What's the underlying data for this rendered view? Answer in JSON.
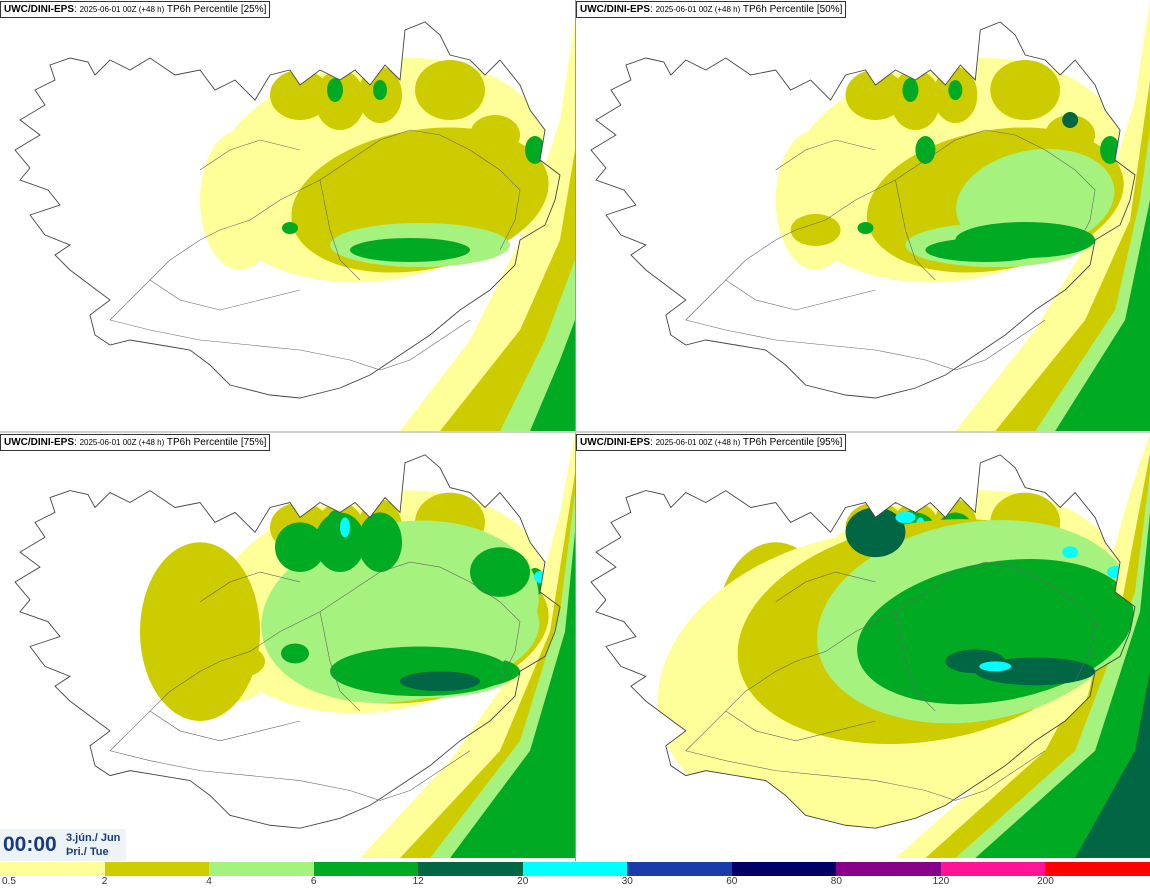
{
  "panels": [
    {
      "model": "UWC/DINI-EPS",
      "run": "2025-06-01 00Z (+48 h)",
      "product": "TP6h Percentile [25%]",
      "level": 0
    },
    {
      "model": "UWC/DINI-EPS",
      "run": "2025-06-01 00Z (+48 h)",
      "product": "TP6h Percentile [50%]",
      "level": 1
    },
    {
      "model": "UWC/DINI-EPS",
      "run": "2025-06-01 00Z (+48 h)",
      "product": "TP6h Percentile [75%]",
      "level": 2
    },
    {
      "model": "UWC/DINI-EPS",
      "run": "2025-06-01 00Z (+48 h)",
      "product": "TP6h Percentile [95%]",
      "level": 3
    }
  ],
  "time": {
    "clock": "00:00",
    "date_line": "3.jún./ Jun",
    "day_line": "Þri./ Tue"
  },
  "legend": {
    "ticks": [
      "0.5",
      "2",
      "4",
      "6",
      "12",
      "20",
      "30",
      "60",
      "80",
      "120",
      "200"
    ],
    "colors": [
      "#ffff99",
      "#cccc00",
      "#a6f27f",
      "#00aa22",
      "#006644",
      "#00ffff",
      "#1a3caa",
      "#000066",
      "#880088",
      "#ff1493",
      "#ff0000"
    ]
  }
}
